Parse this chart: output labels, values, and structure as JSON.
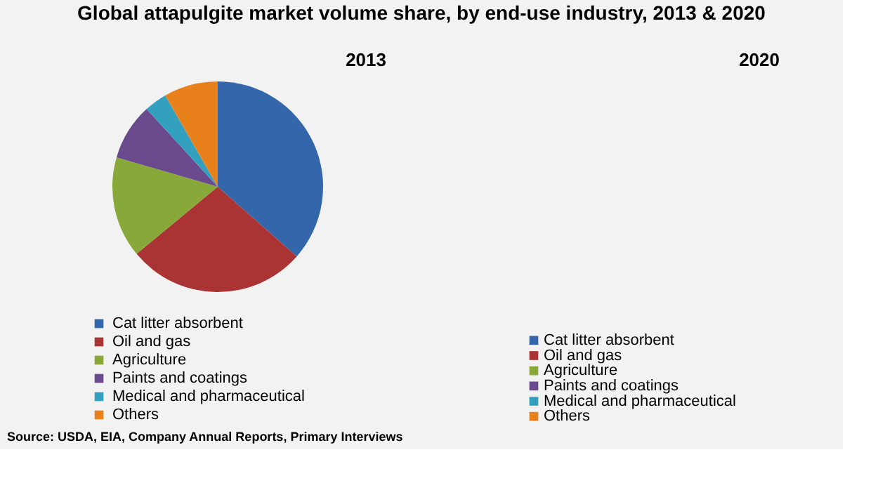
{
  "chart_data": [
    {
      "type": "pie",
      "title": "Global attapulgite market volume share, by end-use industry, 2013 & 2020",
      "subtitle": "2013",
      "categories": [
        "Cat litter absorbent",
        "Oil and gas",
        "Agriculture",
        "Paints and coatings",
        "Medical and pharmaceutical",
        "Others"
      ],
      "values": [
        36.5,
        27.5,
        15.5,
        8.7,
        3.5,
        8.3
      ],
      "colors": [
        "#3366aa",
        "#aa3333",
        "#88a83a",
        "#6a4a8c",
        "#33a0c0",
        "#e8801c"
      ],
      "legend": "bottom left",
      "annotations": [
        "Source: USDA, EIA, Company Annual Reports, Primary Interviews"
      ]
    },
    {
      "type": "other",
      "title": "2020",
      "categories": [
        "Cat litter absorbent",
        "Oil and gas",
        "Agriculture",
        "Paints and coatings",
        "Medical and pharmaceutical",
        "Others"
      ],
      "colors": [
        "#3366aa",
        "#aa3333",
        "#88a83a",
        "#6a4a8c",
        "#33a0c0",
        "#e8801c"
      ]
    }
  ]
}
